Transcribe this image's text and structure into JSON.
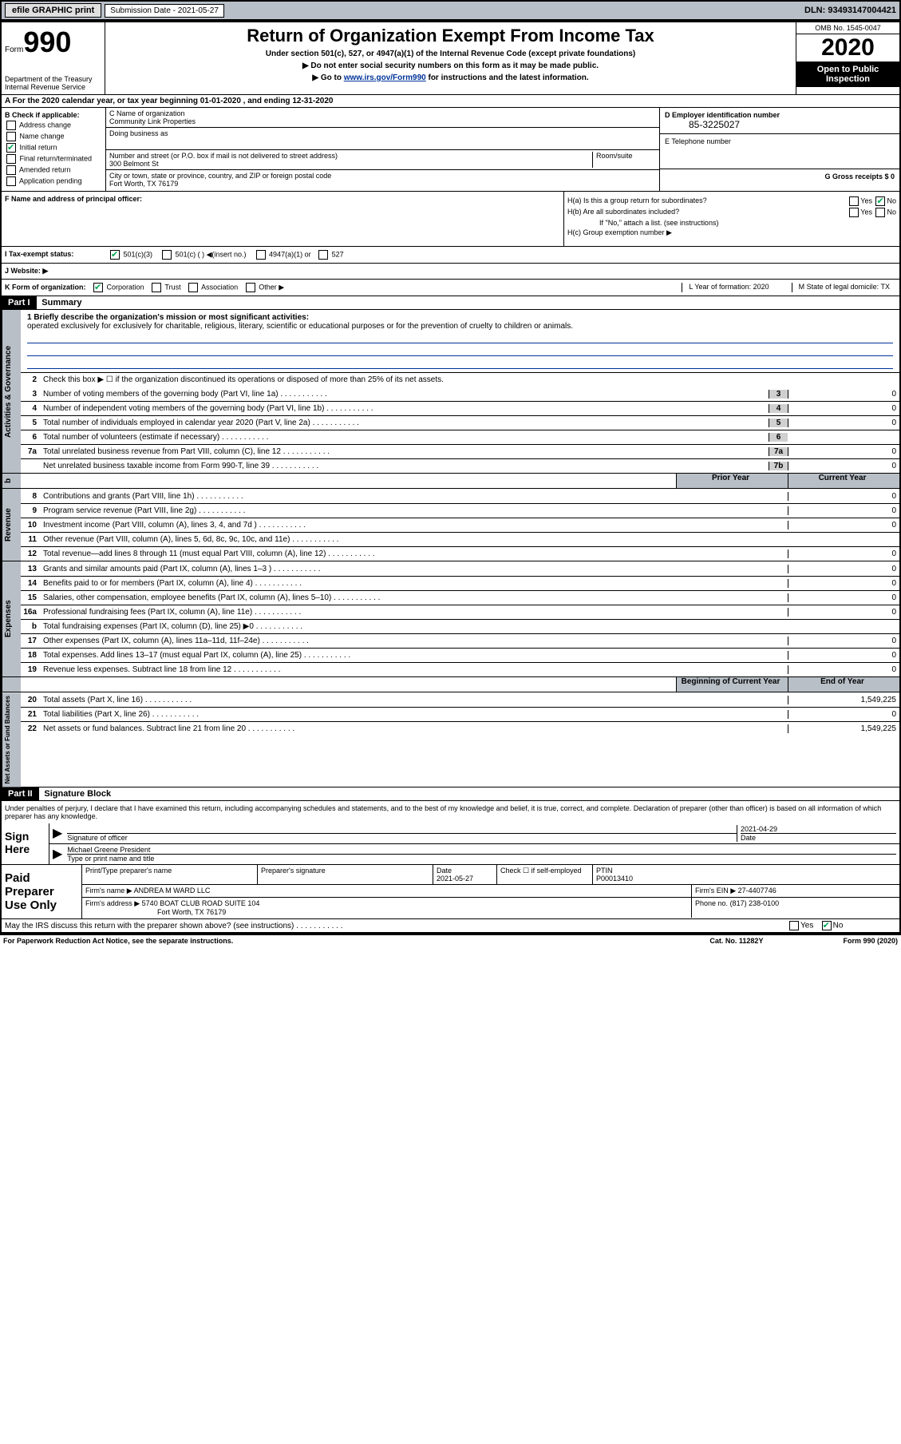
{
  "topbar": {
    "efile": "efile GRAPHIC print",
    "submission": "Submission Date - 2021-05-27",
    "dln": "DLN: 93493147004421"
  },
  "header": {
    "form_label": "Form",
    "form_num": "990",
    "dept": "Department of the Treasury\nInternal Revenue Service",
    "title": "Return of Organization Exempt From Income Tax",
    "sub1": "Under section 501(c), 527, or 4947(a)(1) of the Internal Revenue Code (except private foundations)",
    "arrow1": "▶ Do not enter social security numbers on this form as it may be made public.",
    "arrow2_pre": "▶ Go to ",
    "arrow2_link": "www.irs.gov/Form990",
    "arrow2_post": " for instructions and the latest information.",
    "omb": "OMB No. 1545-0047",
    "year": "2020",
    "open_pub": "Open to Public Inspection"
  },
  "line_a": "A For the 2020 calendar year, or tax year beginning 01-01-2020    , and ending 12-31-2020",
  "col_b": {
    "header": "B Check if applicable:",
    "items": [
      "Address change",
      "Name change",
      "Initial return",
      "Final return/terminated",
      "Amended return",
      "Application pending"
    ],
    "checked_idx": 2
  },
  "col_c": {
    "name_label": "C Name of organization",
    "name": "Community Link Properties",
    "dba_label": "Doing business as",
    "addr_label": "Number and street (or P.O. box if mail is not delivered to street address)",
    "room_label": "Room/suite",
    "addr": "300 Belmont St",
    "city_label": "City or town, state or province, country, and ZIP or foreign postal code",
    "city": "Fort Worth, TX  76179"
  },
  "col_d": {
    "ein_label": "D Employer identification number",
    "ein": "85-3225027",
    "tel_label": "E Telephone number",
    "gross_label": "G Gross receipts $ 0"
  },
  "col_f": "F  Name and address of principal officer:",
  "col_h": {
    "ha": "H(a)  Is this a group return for subordinates?",
    "hb": "H(b)  Are all subordinates included?",
    "hb_note": "If \"No,\" attach a list. (see instructions)",
    "hc": "H(c)  Group exemption number ▶",
    "yes": "Yes",
    "no": "No"
  },
  "line_i": {
    "label": "I   Tax-exempt status:",
    "opts": [
      "501(c)(3)",
      "501(c) (  ) ◀(insert no.)",
      "4947(a)(1) or",
      "527"
    ]
  },
  "line_j": "J   Website: ▶",
  "line_k": {
    "label": "K Form of organization:",
    "opts": [
      "Corporation",
      "Trust",
      "Association",
      "Other ▶"
    ],
    "l": "L Year of formation: 2020",
    "m": "M State of legal domicile: TX"
  },
  "part1": {
    "header": "Part I",
    "title": "Summary",
    "tab1": "Activities & Governance",
    "tab2": "Revenue",
    "tab3": "Expenses",
    "tab4": "Net Assets or Fund Balances",
    "mission_label": "1   Briefly describe the organization's mission or most significant activities:",
    "mission": "operated exclusively for exclusively for charitable, religious, literary, scientific or educational purposes or for the prevention of cruelty to children or animals.",
    "line2": "Check this box ▶ ☐  if the organization discontinued its operations or disposed of more than 25% of its net assets.",
    "lines_ag": [
      {
        "n": "3",
        "t": "Number of voting members of the governing body (Part VI, line 1a)",
        "box": "3",
        "v": "0"
      },
      {
        "n": "4",
        "t": "Number of independent voting members of the governing body (Part VI, line 1b)",
        "box": "4",
        "v": "0"
      },
      {
        "n": "5",
        "t": "Total number of individuals employed in calendar year 2020 (Part V, line 2a)",
        "box": "5",
        "v": "0"
      },
      {
        "n": "6",
        "t": "Total number of volunteers (estimate if necessary)",
        "box": "6",
        "v": ""
      },
      {
        "n": "7a",
        "t": "Total unrelated business revenue from Part VIII, column (C), line 12",
        "box": "7a",
        "v": "0"
      },
      {
        "n": "",
        "t": "Net unrelated business taxable income from Form 990-T, line 39",
        "box": "7b",
        "v": "0"
      }
    ],
    "col_prior": "Prior Year",
    "col_current": "Current Year",
    "lines_rev": [
      {
        "n": "8",
        "t": "Contributions and grants (Part VIII, line 1h)",
        "p": "",
        "c": "0"
      },
      {
        "n": "9",
        "t": "Program service revenue (Part VIII, line 2g)",
        "p": "",
        "c": "0"
      },
      {
        "n": "10",
        "t": "Investment income (Part VIII, column (A), lines 3, 4, and 7d )",
        "p": "",
        "c": "0"
      },
      {
        "n": "11",
        "t": "Other revenue (Part VIII, column (A), lines 5, 6d, 8c, 9c, 10c, and 11e)",
        "p": "",
        "c": ""
      },
      {
        "n": "12",
        "t": "Total revenue—add lines 8 through 11 (must equal Part VIII, column (A), line 12)",
        "p": "",
        "c": "0"
      }
    ],
    "lines_exp": [
      {
        "n": "13",
        "t": "Grants and similar amounts paid (Part IX, column (A), lines 1–3 )",
        "p": "",
        "c": "0"
      },
      {
        "n": "14",
        "t": "Benefits paid to or for members (Part IX, column (A), line 4)",
        "p": "",
        "c": "0"
      },
      {
        "n": "15",
        "t": "Salaries, other compensation, employee benefits (Part IX, column (A), lines 5–10)",
        "p": "",
        "c": "0"
      },
      {
        "n": "16a",
        "t": "Professional fundraising fees (Part IX, column (A), line 11e)",
        "p": "",
        "c": "0"
      },
      {
        "n": "b",
        "t": "Total fundraising expenses (Part IX, column (D), line 25) ▶0",
        "p": "shaded",
        "c": "shaded"
      },
      {
        "n": "17",
        "t": "Other expenses (Part IX, column (A), lines 11a–11d, 11f–24e)",
        "p": "",
        "c": "0"
      },
      {
        "n": "18",
        "t": "Total expenses. Add lines 13–17 (must equal Part IX, column (A), line 25)",
        "p": "",
        "c": "0"
      },
      {
        "n": "19",
        "t": "Revenue less expenses. Subtract line 18 from line 12",
        "p": "",
        "c": "0"
      }
    ],
    "col_beg": "Beginning of Current Year",
    "col_end": "End of Year",
    "lines_na": [
      {
        "n": "20",
        "t": "Total assets (Part X, line 16)",
        "p": "",
        "c": "1,549,225"
      },
      {
        "n": "21",
        "t": "Total liabilities (Part X, line 26)",
        "p": "",
        "c": "0"
      },
      {
        "n": "22",
        "t": "Net assets or fund balances. Subtract line 21 from line 20",
        "p": "",
        "c": "1,549,225"
      }
    ]
  },
  "part2": {
    "header": "Part II",
    "title": "Signature Block",
    "perjury": "Under penalties of perjury, I declare that I have examined this return, including accompanying schedules and statements, and to the best of my knowledge and belief, it is true, correct, and complete. Declaration of preparer (other than officer) is based on all information of which preparer has any knowledge.",
    "sign_here": "Sign Here",
    "sig_officer": "Signature of officer",
    "date": "Date",
    "date_val": "2021-04-29",
    "name_title": "Michael Greene President",
    "name_title_label": "Type or print name and title",
    "paid_prep": "Paid Preparer Use Only",
    "prep_name_label": "Print/Type preparer's name",
    "prep_sig_label": "Preparer's signature",
    "prep_date_label": "Date",
    "prep_date": "2021-05-27",
    "check_self": "Check ☐ if self-employed",
    "ptin_label": "PTIN",
    "ptin": "P00013410",
    "firm_name_label": "Firm's name      ▶",
    "firm_name": "ANDREA M WARD LLC",
    "firm_ein_label": "Firm's EIN ▶",
    "firm_ein": "27-4407746",
    "firm_addr_label": "Firm's address ▶",
    "firm_addr1": "5740 BOAT CLUB ROAD SUITE 104",
    "firm_addr2": "Fort Worth, TX  76179",
    "phone_label": "Phone no.",
    "phone": "(817) 238-0100",
    "discuss": "May the IRS discuss this return with the preparer shown above? (see instructions)"
  },
  "footer": {
    "left": "For Paperwork Reduction Act Notice, see the separate instructions.",
    "mid": "Cat. No. 11282Y",
    "right": "Form 990 (2020)"
  }
}
